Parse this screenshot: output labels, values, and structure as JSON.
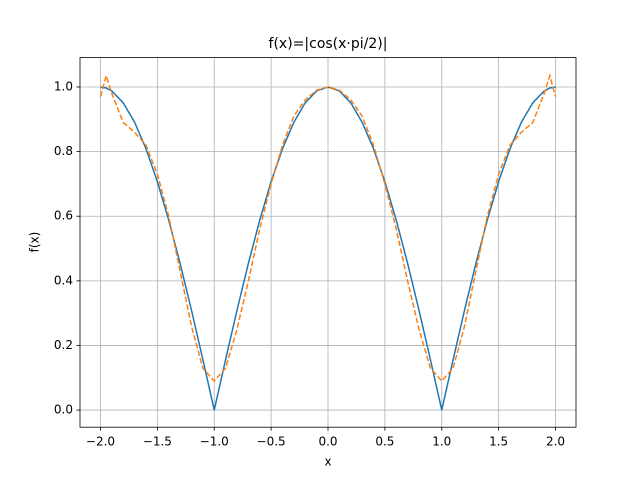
{
  "chart_data": {
    "type": "line",
    "title": "f(x)=|cos(x·pi/2)|",
    "x_label": "x",
    "y_label": "f(x)",
    "x": [
      -2,
      -1.95,
      -1.9,
      -1.8,
      -1.7,
      -1.6,
      -1.5,
      -1.4,
      -1.3,
      -1.2,
      -1.1,
      -1,
      -0.9,
      -0.8,
      -0.7,
      -0.6,
      -0.5,
      -0.4,
      -0.3,
      -0.2,
      -0.1,
      0,
      0.1,
      0.2,
      0.3,
      0.4,
      0.5,
      0.6,
      0.7,
      0.8,
      0.9,
      1,
      1.1,
      1.2,
      1.3,
      1.4,
      1.5,
      1.6,
      1.7,
      1.8,
      1.9,
      1.95,
      2
    ],
    "series": [
      {
        "color": "#1f77b4",
        "dash": "solid",
        "values": [
          1,
          0.9969,
          0.9877,
          0.9511,
          0.891,
          0.809,
          0.7071,
          0.5878,
          0.454,
          0.309,
          0.1564,
          0,
          0.1564,
          0.309,
          0.454,
          0.5878,
          0.7071,
          0.809,
          0.891,
          0.9511,
          0.9877,
          1,
          0.9877,
          0.9511,
          0.891,
          0.809,
          0.7071,
          0.5878,
          0.454,
          0.309,
          0.1564,
          0,
          0.1564,
          0.309,
          0.454,
          0.5878,
          0.7071,
          0.809,
          0.891,
          0.9511,
          0.9877,
          0.9969,
          1
        ]
      },
      {
        "color": "#ff7f0e",
        "dash": "dashed",
        "values": [
          0.97,
          1.035,
          0.98,
          0.89,
          0.86,
          0.82,
          0.73,
          0.6,
          0.43,
          0.26,
          0.13,
          0.09,
          0.13,
          0.25,
          0.4,
          0.56,
          0.7,
          0.82,
          0.91,
          0.96,
          0.99,
          1.0,
          0.99,
          0.96,
          0.91,
          0.82,
          0.7,
          0.56,
          0.4,
          0.25,
          0.13,
          0.09,
          0.13,
          0.26,
          0.43,
          0.6,
          0.73,
          0.82,
          0.86,
          0.89,
          0.98,
          1.035,
          0.97
        ]
      }
    ],
    "xlim": [
      -2.18,
      2.18
    ],
    "ylim": [
      -0.053,
      1.091
    ],
    "xticks": [
      {
        "value": -2,
        "label": "−2.0"
      },
      {
        "value": -1.5,
        "label": "−1.5"
      },
      {
        "value": -1,
        "label": "−1.0"
      },
      {
        "value": -0.5,
        "label": "−0.5"
      },
      {
        "value": 0,
        "label": "0.0"
      },
      0.5,
      {
        "value": 1,
        "label": "1.0"
      },
      1.5,
      {
        "value": 2,
        "label": "2.0"
      }
    ],
    "yticks": [
      {
        "value": 0,
        "label": "0.0"
      },
      0.2,
      0.4,
      0.6,
      0.8,
      {
        "value": 1,
        "label": "1.0"
      }
    ],
    "grid": true
  }
}
